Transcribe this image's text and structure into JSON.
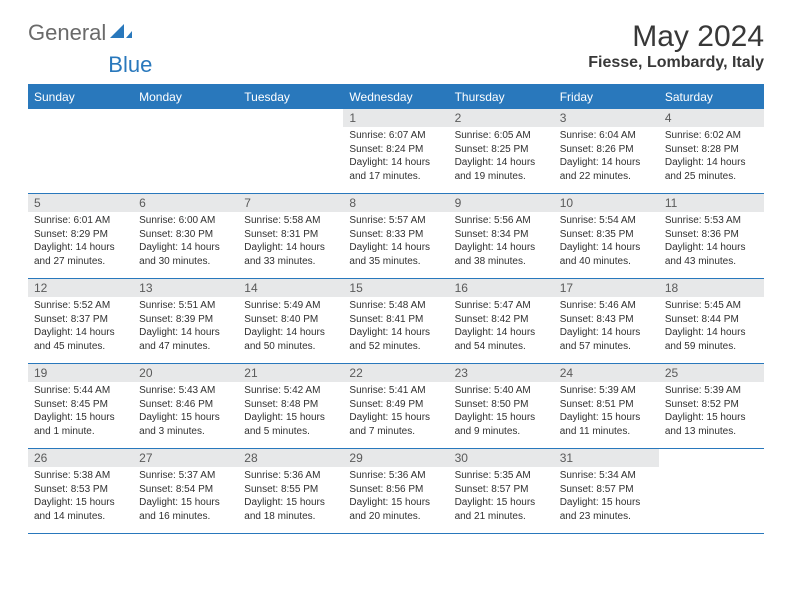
{
  "brand": {
    "part1": "General",
    "part2": "Blue"
  },
  "title": "May 2024",
  "location": "Fiesse, Lombardy, Italy",
  "colors": {
    "header_bg": "#2978bc",
    "header_text": "#ffffff",
    "daynum_bg": "#e7e8e9",
    "daynum_text": "#5a5a5a",
    "body_text": "#303030",
    "divider": "#2978bc",
    "page_bg": "#ffffff",
    "logo_gray": "#6a6a6a",
    "logo_blue": "#2978bc"
  },
  "fonts": {
    "title_size": 30,
    "location_size": 16,
    "header_size": 12,
    "daynum_size": 12,
    "data_size": 10
  },
  "columns": [
    "Sunday",
    "Monday",
    "Tuesday",
    "Wednesday",
    "Thursday",
    "Friday",
    "Saturday"
  ],
  "weeks": [
    [
      null,
      null,
      null,
      {
        "n": "1",
        "sr": "6:07 AM",
        "ss": "8:24 PM",
        "dl": "14 hours and 17 minutes."
      },
      {
        "n": "2",
        "sr": "6:05 AM",
        "ss": "8:25 PM",
        "dl": "14 hours and 19 minutes."
      },
      {
        "n": "3",
        "sr": "6:04 AM",
        "ss": "8:26 PM",
        "dl": "14 hours and 22 minutes."
      },
      {
        "n": "4",
        "sr": "6:02 AM",
        "ss": "8:28 PM",
        "dl": "14 hours and 25 minutes."
      }
    ],
    [
      {
        "n": "5",
        "sr": "6:01 AM",
        "ss": "8:29 PM",
        "dl": "14 hours and 27 minutes."
      },
      {
        "n": "6",
        "sr": "6:00 AM",
        "ss": "8:30 PM",
        "dl": "14 hours and 30 minutes."
      },
      {
        "n": "7",
        "sr": "5:58 AM",
        "ss": "8:31 PM",
        "dl": "14 hours and 33 minutes."
      },
      {
        "n": "8",
        "sr": "5:57 AM",
        "ss": "8:33 PM",
        "dl": "14 hours and 35 minutes."
      },
      {
        "n": "9",
        "sr": "5:56 AM",
        "ss": "8:34 PM",
        "dl": "14 hours and 38 minutes."
      },
      {
        "n": "10",
        "sr": "5:54 AM",
        "ss": "8:35 PM",
        "dl": "14 hours and 40 minutes."
      },
      {
        "n": "11",
        "sr": "5:53 AM",
        "ss": "8:36 PM",
        "dl": "14 hours and 43 minutes."
      }
    ],
    [
      {
        "n": "12",
        "sr": "5:52 AM",
        "ss": "8:37 PM",
        "dl": "14 hours and 45 minutes."
      },
      {
        "n": "13",
        "sr": "5:51 AM",
        "ss": "8:39 PM",
        "dl": "14 hours and 47 minutes."
      },
      {
        "n": "14",
        "sr": "5:49 AM",
        "ss": "8:40 PM",
        "dl": "14 hours and 50 minutes."
      },
      {
        "n": "15",
        "sr": "5:48 AM",
        "ss": "8:41 PM",
        "dl": "14 hours and 52 minutes."
      },
      {
        "n": "16",
        "sr": "5:47 AM",
        "ss": "8:42 PM",
        "dl": "14 hours and 54 minutes."
      },
      {
        "n": "17",
        "sr": "5:46 AM",
        "ss": "8:43 PM",
        "dl": "14 hours and 57 minutes."
      },
      {
        "n": "18",
        "sr": "5:45 AM",
        "ss": "8:44 PM",
        "dl": "14 hours and 59 minutes."
      }
    ],
    [
      {
        "n": "19",
        "sr": "5:44 AM",
        "ss": "8:45 PM",
        "dl": "15 hours and 1 minute."
      },
      {
        "n": "20",
        "sr": "5:43 AM",
        "ss": "8:46 PM",
        "dl": "15 hours and 3 minutes."
      },
      {
        "n": "21",
        "sr": "5:42 AM",
        "ss": "8:48 PM",
        "dl": "15 hours and 5 minutes."
      },
      {
        "n": "22",
        "sr": "5:41 AM",
        "ss": "8:49 PM",
        "dl": "15 hours and 7 minutes."
      },
      {
        "n": "23",
        "sr": "5:40 AM",
        "ss": "8:50 PM",
        "dl": "15 hours and 9 minutes."
      },
      {
        "n": "24",
        "sr": "5:39 AM",
        "ss": "8:51 PM",
        "dl": "15 hours and 11 minutes."
      },
      {
        "n": "25",
        "sr": "5:39 AM",
        "ss": "8:52 PM",
        "dl": "15 hours and 13 minutes."
      }
    ],
    [
      {
        "n": "26",
        "sr": "5:38 AM",
        "ss": "8:53 PM",
        "dl": "15 hours and 14 minutes."
      },
      {
        "n": "27",
        "sr": "5:37 AM",
        "ss": "8:54 PM",
        "dl": "15 hours and 16 minutes."
      },
      {
        "n": "28",
        "sr": "5:36 AM",
        "ss": "8:55 PM",
        "dl": "15 hours and 18 minutes."
      },
      {
        "n": "29",
        "sr": "5:36 AM",
        "ss": "8:56 PM",
        "dl": "15 hours and 20 minutes."
      },
      {
        "n": "30",
        "sr": "5:35 AM",
        "ss": "8:57 PM",
        "dl": "15 hours and 21 minutes."
      },
      {
        "n": "31",
        "sr": "5:34 AM",
        "ss": "8:57 PM",
        "dl": "15 hours and 23 minutes."
      },
      null
    ]
  ],
  "labels": {
    "sunrise": "Sunrise:",
    "sunset": "Sunset:",
    "daylight": "Daylight:"
  }
}
